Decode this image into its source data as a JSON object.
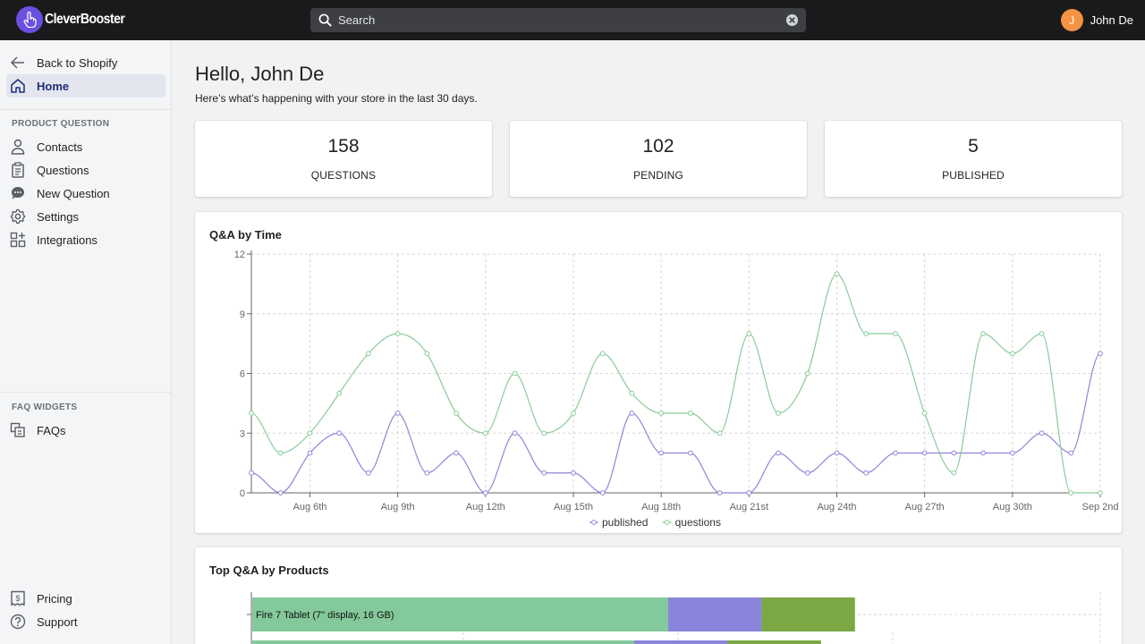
{
  "app": {
    "logo_text": "CleverBooster"
  },
  "search": {
    "placeholder": "Search"
  },
  "user": {
    "initial": "J",
    "name": "John De"
  },
  "sidebar": {
    "back": {
      "label": "Back to Shopify",
      "icon": "arrow-left-icon"
    },
    "home": {
      "label": "Home",
      "icon": "home-icon"
    },
    "product_question": {
      "title": "PRODUCT QUESTION",
      "items": [
        {
          "label": "Contacts",
          "icon": "person-icon"
        },
        {
          "label": "Questions",
          "icon": "clipboard-icon"
        },
        {
          "label": "New Question",
          "icon": "chat-bubble-icon"
        },
        {
          "label": "Settings",
          "icon": "gear-icon"
        },
        {
          "label": "Integrations",
          "icon": "apps-icon"
        }
      ]
    },
    "faq_widgets": {
      "title": "FAQ WIDGETS",
      "items": [
        {
          "label": "FAQs",
          "icon": "faq-icon"
        }
      ]
    },
    "bottom": [
      {
        "label": "Pricing",
        "icon": "price-tag-icon"
      },
      {
        "label": "Support",
        "icon": "question-circle-icon"
      }
    ]
  },
  "main": {
    "greeting": "Hello, John De",
    "subtitle": "Here’s what’s happening with your store in the last 30 days.",
    "stats": [
      {
        "value": "158",
        "label": "QUESTIONS"
      },
      {
        "value": "102",
        "label": "PENDING"
      },
      {
        "value": "5",
        "label": "PUBLISHED"
      }
    ],
    "qa_panel": {
      "title": "Q&A by Time"
    },
    "top_panel": {
      "title": "Top Q&A by Products"
    }
  },
  "colors": {
    "published": "#8b85d9",
    "questions": "#88cc99",
    "bar_green": "#84c99b",
    "bar_purple": "#8a85dc",
    "bar_olive": "#7ba843"
  },
  "chart_data": [
    {
      "type": "line",
      "title": "Q&A by Time",
      "x": [
        "Aug 4th",
        "Aug 5th",
        "Aug 6th",
        "Aug 7th",
        "Aug 8th",
        "Aug 9th",
        "Aug 10th",
        "Aug 11th",
        "Aug 12th",
        "Aug 13th",
        "Aug 14th",
        "Aug 15th",
        "Aug 16th",
        "Aug 17th",
        "Aug 18th",
        "Aug 19th",
        "Aug 20th",
        "Aug 21st",
        "Aug 22nd",
        "Aug 23rd",
        "Aug 24th",
        "Aug 25th",
        "Aug 26th",
        "Aug 27th",
        "Aug 28th",
        "Aug 29th",
        "Aug 30th",
        "Aug 31st",
        "Sep 1st",
        "Sep 2nd"
      ],
      "x_tick_labels": [
        "Aug 6th",
        "Aug 9th",
        "Aug 12th",
        "Aug 15th",
        "Aug 18th",
        "Aug 21st",
        "Aug 24th",
        "Aug 27th",
        "Aug 30th",
        "Sep 2nd"
      ],
      "y_ticks": [
        0,
        3,
        6,
        9,
        12
      ],
      "ylim": [
        0,
        12
      ],
      "grid": true,
      "legend": "bottom",
      "series": [
        {
          "name": "published",
          "values": [
            1,
            0,
            2,
            3,
            1,
            4,
            1,
            2,
            0,
            3,
            1,
            1,
            0,
            4,
            2,
            2,
            0,
            0,
            2,
            1,
            2,
            1,
            2,
            2,
            2,
            2,
            2,
            3,
            2,
            7
          ]
        },
        {
          "name": "questions",
          "values": [
            4,
            2,
            3,
            5,
            7,
            8,
            7,
            4,
            3,
            6,
            3,
            4,
            7,
            5,
            4,
            4,
            3,
            8,
            4,
            6,
            11,
            8,
            8,
            4,
            1,
            8,
            7,
            8,
            0,
            0
          ]
        }
      ]
    },
    {
      "type": "bar",
      "title": "Top Q&A by Products",
      "orientation": "horizontal",
      "stacked": true,
      "categories": [
        "Fire 7 Tablet (7\" display, 16 GB)"
      ],
      "visible_rows": [
        {
          "label": "Fire 7 Tablet (7\" display, 16 GB)",
          "segments": [
            0.49,
            0.11,
            0.11
          ]
        },
        {
          "label": "",
          "segments": [
            0.45,
            0.11,
            0.11
          ]
        }
      ]
    }
  ]
}
